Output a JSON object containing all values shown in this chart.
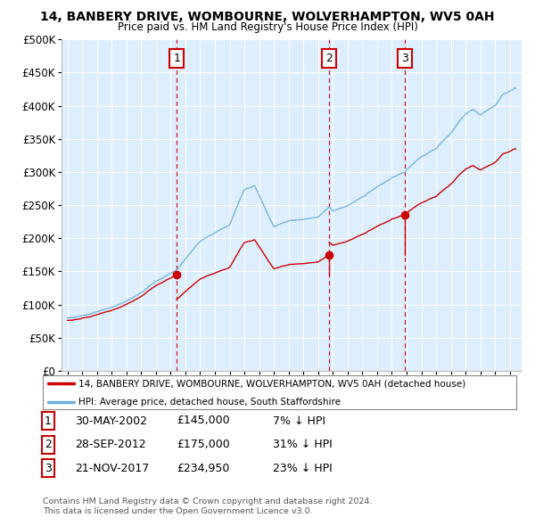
{
  "title1": "14, BANBERY DRIVE, WOMBOURNE, WOLVERHAMPTON, WV5 0AH",
  "title2": "Price paid vs. HM Land Registry's House Price Index (HPI)",
  "ylim": [
    0,
    500000
  ],
  "yticks": [
    0,
    50000,
    100000,
    150000,
    200000,
    250000,
    300000,
    350000,
    400000,
    450000,
    500000
  ],
  "ytick_labels": [
    "£0",
    "£50K",
    "£100K",
    "£150K",
    "£200K",
    "£250K",
    "£300K",
    "£350K",
    "£400K",
    "£450K",
    "£500K"
  ],
  "xlim_start": 1994.6,
  "xlim_end": 2025.8,
  "sale_dates": [
    2002.41,
    2012.74,
    2017.89
  ],
  "sale_prices": [
    145000,
    175000,
    234950
  ],
  "sale_labels": [
    "1",
    "2",
    "3"
  ],
  "sale_date_strs": [
    "30-MAY-2002",
    "28-SEP-2012",
    "21-NOV-2017"
  ],
  "sale_price_strs": [
    "£145,000",
    "£175,000",
    "£234,950"
  ],
  "sale_pct_strs": [
    "7% ↓ HPI",
    "31% ↓ HPI",
    "23% ↓ HPI"
  ],
  "legend_line1": "14, BANBERY DRIVE, WOMBOURNE, WOLVERHAMPTON, WV5 0AH (detached house)",
  "legend_line2": "HPI: Average price, detached house, South Staffordshire",
  "footnote1": "Contains HM Land Registry data © Crown copyright and database right 2024.",
  "footnote2": "This data is licensed under the Open Government Licence v3.0.",
  "line_color_red": "#cc0000",
  "line_color_blue": "#6ab0d8",
  "bg_color": "#ddeeff",
  "grid_color": "#ffffff",
  "hpi_key_years": [
    1995.0,
    1996.0,
    1997.0,
    1998.0,
    1999.0,
    2000.0,
    2001.0,
    2002.0,
    2002.41,
    2003.0,
    2004.0,
    2005.0,
    2006.0,
    2007.0,
    2007.7,
    2008.0,
    2008.5,
    2009.0,
    2009.5,
    2010.0,
    2011.0,
    2012.0,
    2012.74,
    2013.0,
    2014.0,
    2015.0,
    2016.0,
    2017.0,
    2017.89,
    2018.0,
    2019.0,
    2020.0,
    2021.0,
    2021.5,
    2022.0,
    2022.5,
    2023.0,
    2024.0,
    2024.5,
    2025.3
  ],
  "hpi_key_vals": [
    80000,
    83000,
    90000,
    97000,
    107000,
    120000,
    138000,
    150000,
    156000,
    173000,
    198000,
    210000,
    222000,
    276000,
    282000,
    268000,
    245000,
    222000,
    228000,
    232000,
    235000,
    238000,
    253000,
    248000,
    255000,
    268000,
    280000,
    295000,
    305000,
    310000,
    326000,
    338000,
    362000,
    378000,
    392000,
    398000,
    390000,
    405000,
    420000,
    430000
  ]
}
